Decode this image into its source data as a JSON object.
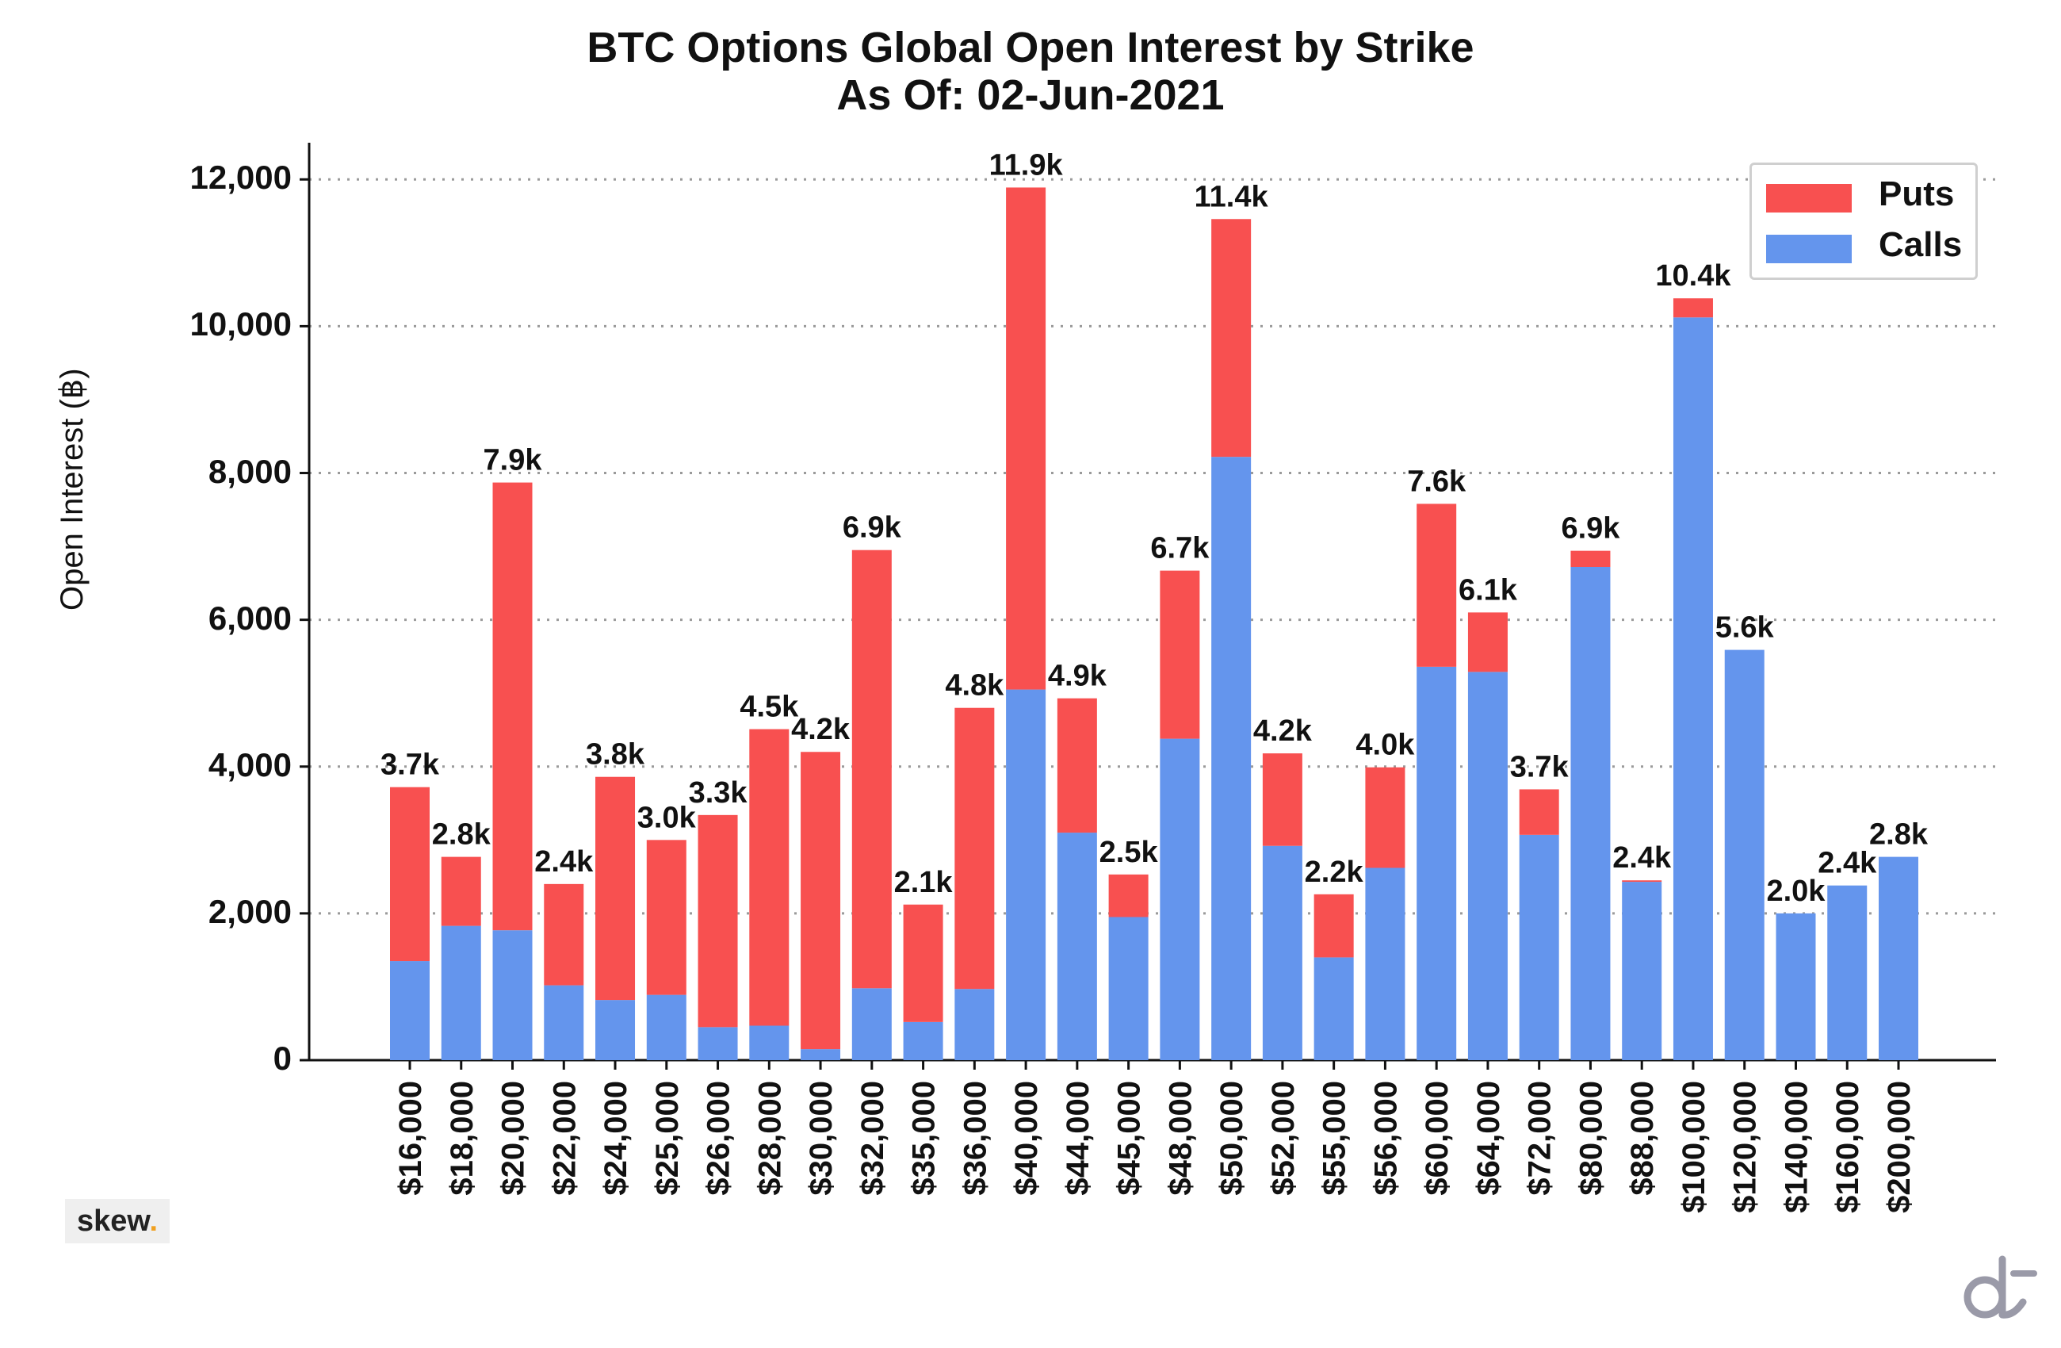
{
  "chart_data": {
    "type": "bar",
    "stacked": true,
    "title": "BTC Options Global Open Interest by Strike",
    "subtitle": "As Of: 02-Jun-2021",
    "xlabel": "",
    "ylabel": "Open Interest (฿)",
    "ylim": [
      0,
      12500
    ],
    "yticks": [
      0,
      2000,
      4000,
      6000,
      8000,
      10000,
      12000
    ],
    "ytick_labels": [
      "0",
      "2,000",
      "4,000",
      "6,000",
      "8,000",
      "10,000",
      "12,000"
    ],
    "grid": "horizontal dotted",
    "legend_position": "top-right",
    "categories": [
      "$16,000",
      "$18,000",
      "$20,000",
      "$22,000",
      "$24,000",
      "$25,000",
      "$26,000",
      "$28,000",
      "$30,000",
      "$32,000",
      "$35,000",
      "$36,000",
      "$40,000",
      "$44,000",
      "$45,000",
      "$48,000",
      "$50,000",
      "$52,000",
      "$55,000",
      "$56,000",
      "$60,000",
      "$64,000",
      "$72,000",
      "$80,000",
      "$88,000",
      "$100,000",
      "$120,000",
      "$140,000",
      "$160,000",
      "$200,000"
    ],
    "series": [
      {
        "name": "Calls",
        "color": "#6495ED",
        "values": [
          1350,
          1830,
          1770,
          1020,
          820,
          890,
          450,
          470,
          150,
          980,
          520,
          970,
          5050,
          3100,
          1950,
          4380,
          8220,
          2920,
          1400,
          2620,
          5360,
          5290,
          3070,
          6720,
          2430,
          10120,
          5590,
          2000,
          2380,
          2770
        ]
      },
      {
        "name": "Puts",
        "color": "#F85050",
        "values": [
          2370,
          940,
          6100,
          1380,
          3040,
          2110,
          2890,
          4040,
          4050,
          5970,
          1600,
          3830,
          6840,
          1830,
          580,
          2290,
          3240,
          1260,
          860,
          1370,
          2220,
          810,
          620,
          220,
          20,
          260,
          0,
          0,
          0,
          0
        ]
      }
    ],
    "bar_labels": [
      "3.7k",
      "2.8k",
      "7.9k",
      "2.4k",
      "3.8k",
      "3.0k",
      "3.3k",
      "4.5k",
      "4.2k",
      "6.9k",
      "2.1k",
      "4.8k",
      "11.9k",
      "4.9k",
      "2.5k",
      "6.7k",
      "11.4k",
      "4.2k",
      "2.2k",
      "4.0k",
      "7.6k",
      "6.1k",
      "3.7k",
      "6.9k",
      "2.4k",
      "10.4k",
      "5.6k",
      "2.0k",
      "2.4k",
      "2.8k"
    ]
  },
  "legend": {
    "puts_label": "Puts",
    "calls_label": "Calls",
    "puts_color": "#F85050",
    "calls_color": "#6495ED"
  },
  "branding": {
    "skew_text": "skew",
    "skew_dot": ".",
    "corner_logo_icon": "dt-logo-icon"
  }
}
